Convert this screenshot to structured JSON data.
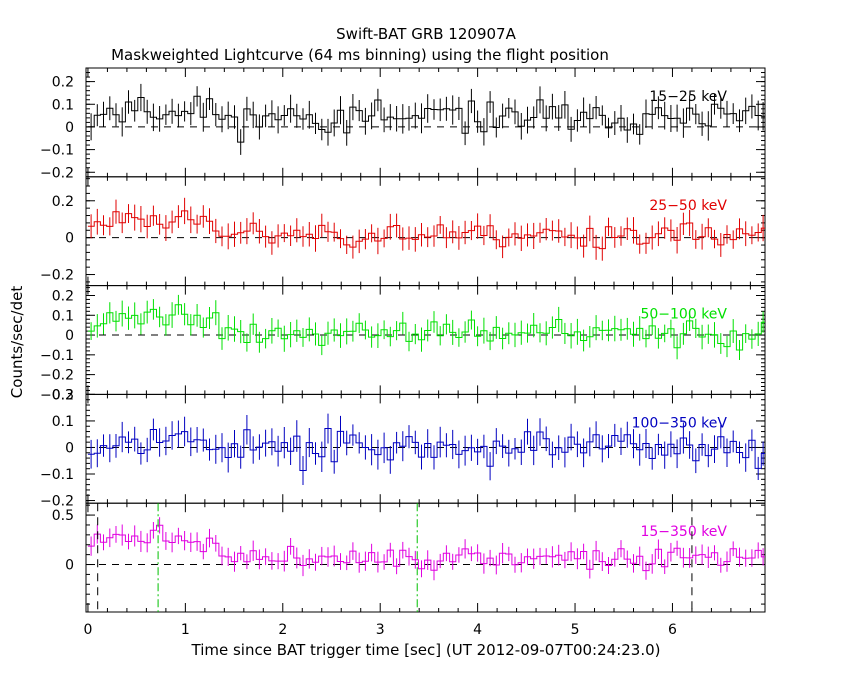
{
  "header": {
    "title": "Swift-BAT GRB 120907A",
    "subtitle": "Maskweighted Lightcurve (64 ms binning) using the flight position"
  },
  "axes": {
    "xlabel": "Time since BAT trigger time [sec] (UT 2012-09-07T00:24:23.0)",
    "ylabel": "Counts/sec/det"
  },
  "chart_data": {
    "type": "line",
    "style": "histogram-step-with-error-bars",
    "bin_width_sec": 0.064,
    "xlim": [
      -0.02,
      6.95
    ],
    "x_ticks": [
      0,
      1,
      2,
      3,
      4,
      5,
      6
    ],
    "x_tick_labels": [
      "0",
      "1",
      "2",
      "3",
      "4",
      "5",
      "6"
    ],
    "markers": [
      {
        "kind": "dashed",
        "color": "#000000",
        "x": [
          0.1,
          6.2
        ]
      },
      {
        "kind": "dash-dot",
        "color": "#00c000",
        "x": [
          0.72,
          3.38
        ]
      }
    ],
    "panels": [
      {
        "name": "15-25 keV",
        "label": "15−25 keV",
        "color": "#000000",
        "ylim": [
          -0.22,
          0.26
        ],
        "yticks": [
          -0.2,
          -0.1,
          0,
          0.1,
          0.2
        ],
        "ytick_labels": [
          "−0.2",
          "−0.1",
          "0",
          "0.1",
          "0.2"
        ],
        "level": 0.04,
        "burst": 0.04,
        "noise": 0.05,
        "err": 0.055,
        "seed": 11
      },
      {
        "name": "25-50 keV",
        "label": "25−50 keV",
        "color": "#e00000",
        "ylim": [
          -0.26,
          0.33
        ],
        "yticks": [
          -0.2,
          0,
          0.2
        ],
        "ytick_labels": [
          "−0.2",
          "0",
          "0.2"
        ],
        "level": 0.02,
        "burst": 0.1,
        "noise": 0.05,
        "err": 0.06,
        "seed": 23
      },
      {
        "name": "50-100 keV",
        "label": "50−100 keV",
        "color": "#00e000",
        "ylim": [
          -0.3,
          0.25
        ],
        "yticks": [
          -0.3,
          -0.2,
          -0.1,
          0,
          0.1,
          0.2
        ],
        "ytick_labels": [
          "−0.3",
          "−0.2",
          "−0.1",
          "0",
          "0.1",
          "0.2"
        ],
        "level": 0.01,
        "burst": 0.1,
        "noise": 0.045,
        "err": 0.055,
        "seed": 37
      },
      {
        "name": "100-350 keV",
        "label": "100−350 keV",
        "color": "#0000c0",
        "ylim": [
          -0.21,
          0.2
        ],
        "yticks": [
          -0.2,
          -0.1,
          0,
          0.1,
          0.2
        ],
        "ytick_labels": [
          "−0.2",
          "−0.1",
          "0",
          "0.1",
          "0.2"
        ],
        "level": 0.0,
        "burst": 0.04,
        "noise": 0.045,
        "err": 0.05,
        "seed": 53
      },
      {
        "name": "15-350 keV",
        "label": "15−350 keV",
        "color": "#e000e0",
        "ylim": [
          -0.48,
          0.62
        ],
        "yticks": [
          0,
          0.5
        ],
        "ytick_labels": [
          "0",
          "0.5"
        ],
        "level": 0.06,
        "burst": 0.25,
        "noise": 0.07,
        "err": 0.09,
        "seed": 71
      }
    ]
  }
}
